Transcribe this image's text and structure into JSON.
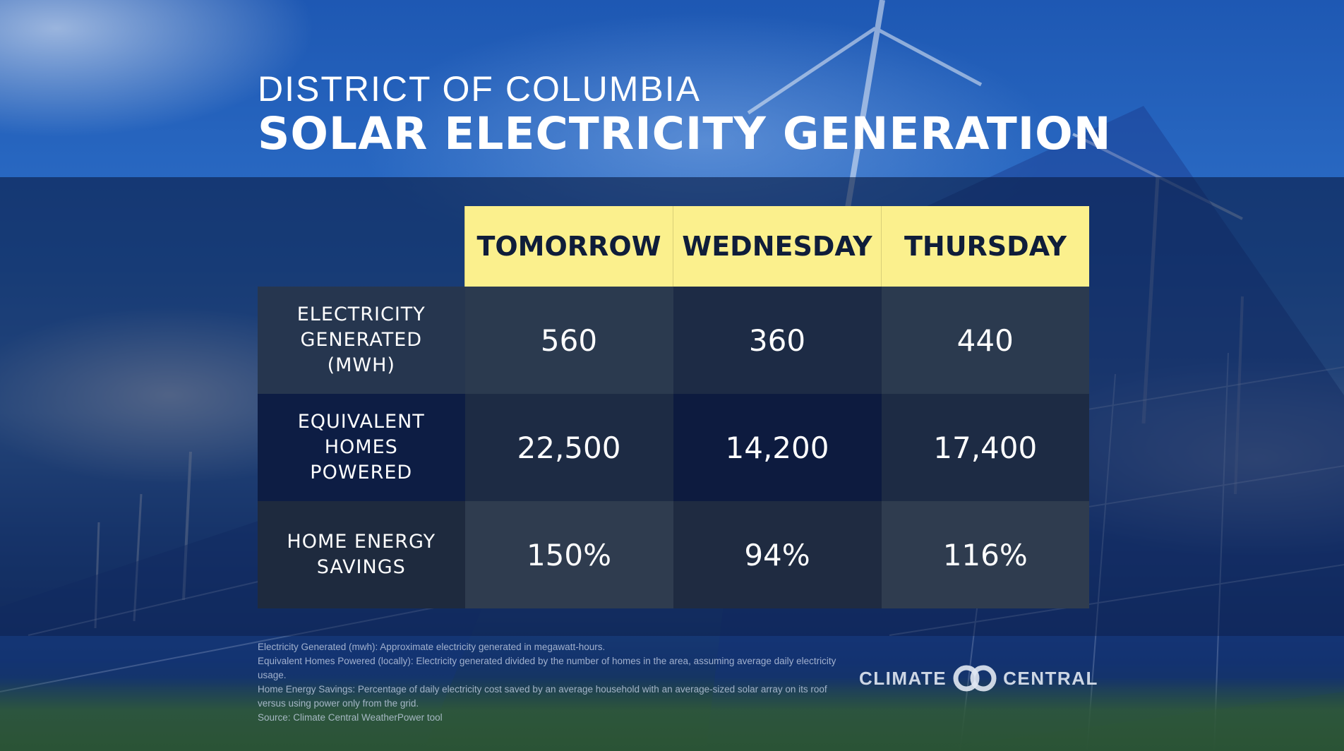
{
  "header": {
    "state": "DISTRICT OF COLUMBIA",
    "title": "SOLAR ELECTRICITY GENERATION"
  },
  "table": {
    "columns": [
      "TOMORROW",
      "WEDNESDAY",
      "THURSDAY"
    ],
    "rows": [
      {
        "label_lines": [
          "ELECTRICITY",
          "GENERATED",
          "(MWH)"
        ],
        "values": [
          "560",
          "360",
          "440"
        ]
      },
      {
        "label_lines": [
          "EQUIVALENT",
          "HOMES",
          "POWERED"
        ],
        "values": [
          "22,500",
          "14,200",
          "17,400"
        ]
      },
      {
        "label_lines": [
          "HOME ENERGY",
          "SAVINGS"
        ],
        "values": [
          "150%",
          "94%",
          "116%"
        ]
      }
    ]
  },
  "footnotes": [
    "Electricity Generated (mwh): Approximate electricity generated in megawatt-hours.",
    "Equivalent Homes Powered (locally): Electricity generated divided by the number of homes in the area, assuming average daily electricity usage.",
    "Home Energy Savings: Percentage of daily electricity cost saved by an average household with an average-sized solar array on its roof versus using power only from the grid.",
    "Source: Climate Central WeatherPower tool"
  ],
  "logo": {
    "left": "CLIMATE",
    "right": "CENTRAL"
  },
  "colors": {
    "header_yellow": "#fbf08d",
    "header_text": "#0f1d3a",
    "band": "#0a1c44"
  }
}
